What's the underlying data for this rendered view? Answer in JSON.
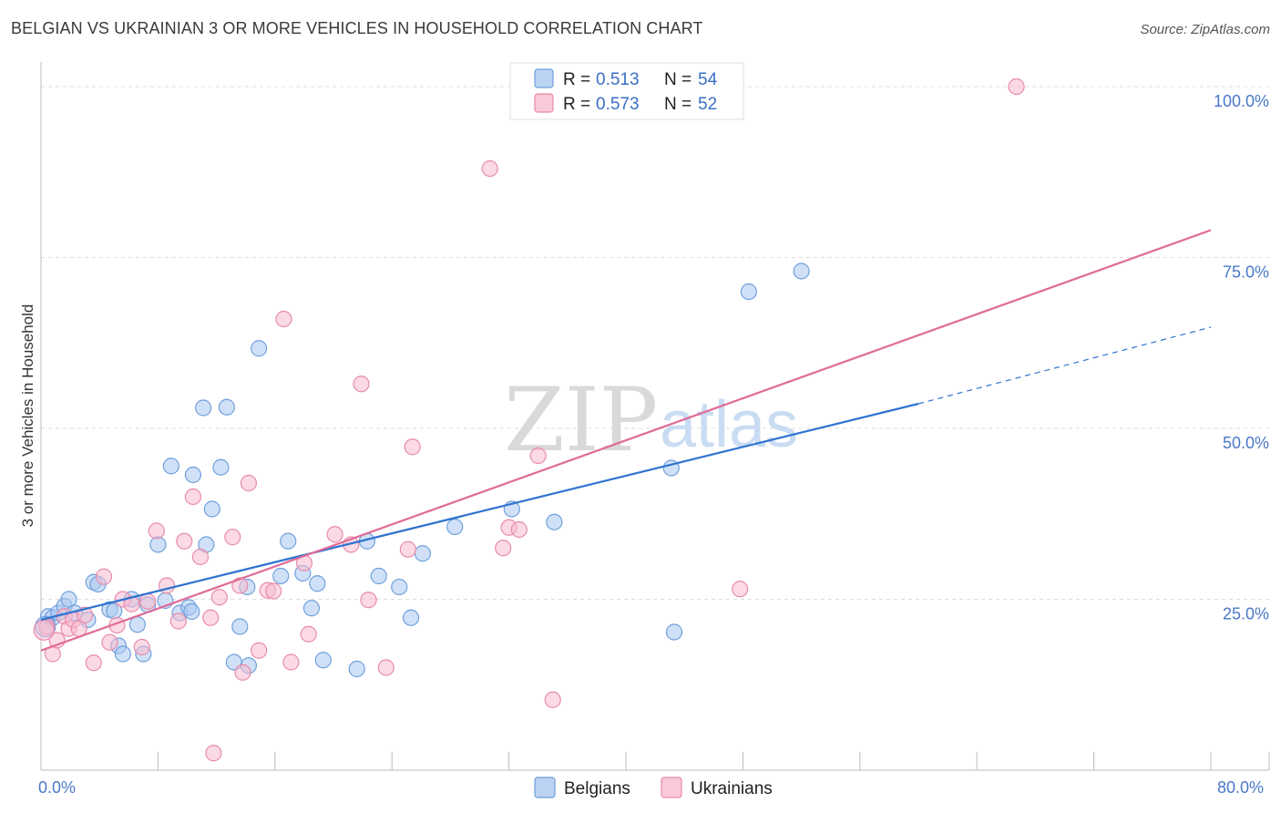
{
  "header": {
    "title": "BELGIAN VS UKRAINIAN 3 OR MORE VEHICLES IN HOUSEHOLD CORRELATION CHART",
    "source": "Source: ZipAtlas.com"
  },
  "watermark": {
    "zip": "ZIP",
    "atlas": "atlas"
  },
  "legend": {
    "rows": [
      {
        "r_label": "R =",
        "r_value": "0.513",
        "n_label": "N =",
        "n_value": "54"
      },
      {
        "r_label": "R =",
        "r_value": "0.573",
        "n_label": "N =",
        "n_value": "52"
      }
    ]
  },
  "colors": {
    "belgians_fill": "#aac8f0",
    "belgians_stroke": "#6f9fdc",
    "belgians_line": "#2f74d0",
    "ukrainians_fill": "#f7bcd0",
    "ukrainians_stroke": "#e88aab",
    "ukrainians_line": "#e06b98",
    "grid": "#dddddd",
    "tick_text": "#4a78c8"
  },
  "chart_data": {
    "type": "scatter",
    "title": "BELGIAN VS UKRAINIAN 3 OR MORE VEHICLES IN HOUSEHOLD CORRELATION CHART",
    "xlabel": "",
    "ylabel": "3 or more Vehicles in Household",
    "xlim": [
      0,
      80
    ],
    "ylim": [
      0,
      102
    ],
    "x_tick_labels": [
      "0.0%",
      "80.0%"
    ],
    "y_ticks": [
      25,
      50,
      75,
      100
    ],
    "y_tick_labels": [
      "25.0%",
      "50.0%",
      "75.0%",
      "100.0%"
    ],
    "grid": true,
    "legend_position": "top-center",
    "series": [
      {
        "name": "Belgians",
        "r": 0.513,
        "n": 54,
        "trend": {
          "x": [
            0,
            60,
            80
          ],
          "y": [
            22.0,
            53.6,
            64.8
          ],
          "dashed_from_x": 60
        },
        "points": [
          [
            0.5,
            22.5
          ],
          [
            0.8,
            22.3
          ],
          [
            1.2,
            23.0
          ],
          [
            1.6,
            24.0
          ],
          [
            1.9,
            25.0
          ],
          [
            2.3,
            23.0
          ],
          [
            3.2,
            22.0
          ],
          [
            3.6,
            27.5
          ],
          [
            3.9,
            27.2
          ],
          [
            4.7,
            23.5
          ],
          [
            5.0,
            23.3
          ],
          [
            5.3,
            18.2
          ],
          [
            5.6,
            17.0
          ],
          [
            6.2,
            25.0
          ],
          [
            6.6,
            21.3
          ],
          [
            7.0,
            17.0
          ],
          [
            7.3,
            24.2
          ],
          [
            8.0,
            33.0
          ],
          [
            8.5,
            24.8
          ],
          [
            8.9,
            44.5
          ],
          [
            9.5,
            23.0
          ],
          [
            10.1,
            23.8
          ],
          [
            10.3,
            23.2
          ],
          [
            10.4,
            43.2
          ],
          [
            11.1,
            53.0
          ],
          [
            11.3,
            33.0
          ],
          [
            11.7,
            38.2
          ],
          [
            12.3,
            44.3
          ],
          [
            12.7,
            53.1
          ],
          [
            13.6,
            21.0
          ],
          [
            13.2,
            15.8
          ],
          [
            14.2,
            15.3
          ],
          [
            14.1,
            26.8
          ],
          [
            14.9,
            61.7
          ],
          [
            16.4,
            28.4
          ],
          [
            16.9,
            33.5
          ],
          [
            17.9,
            28.8
          ],
          [
            18.5,
            23.7
          ],
          [
            18.9,
            27.3
          ],
          [
            19.3,
            16.1
          ],
          [
            21.6,
            14.8
          ],
          [
            22.3,
            33.5
          ],
          [
            23.1,
            28.4
          ],
          [
            24.5,
            26.8
          ],
          [
            25.3,
            22.3
          ],
          [
            26.1,
            31.7
          ],
          [
            28.3,
            35.6
          ],
          [
            32.2,
            38.2
          ],
          [
            35.1,
            36.3
          ],
          [
            43.3,
            20.2
          ],
          [
            43.1,
            44.2
          ],
          [
            48.4,
            70.0
          ],
          [
            52.0,
            73.0
          ],
          [
            0.3,
            21.0
          ]
        ]
      },
      {
        "name": "Ukrainians",
        "r": 0.573,
        "n": 52,
        "trend": {
          "x": [
            0,
            80
          ],
          "y": [
            17.5,
            79.0
          ]
        },
        "points": [
          [
            0.4,
            21.0
          ],
          [
            0.8,
            17.0
          ],
          [
            1.1,
            19.0
          ],
          [
            1.6,
            22.5
          ],
          [
            1.9,
            20.7
          ],
          [
            2.2,
            22.0
          ],
          [
            2.6,
            20.7
          ],
          [
            3.0,
            22.7
          ],
          [
            3.6,
            15.7
          ],
          [
            4.3,
            28.3
          ],
          [
            4.7,
            18.7
          ],
          [
            5.2,
            21.2
          ],
          [
            5.6,
            25.0
          ],
          [
            6.2,
            24.3
          ],
          [
            6.9,
            18.0
          ],
          [
            7.3,
            24.7
          ],
          [
            7.9,
            35.0
          ],
          [
            8.6,
            27.0
          ],
          [
            9.4,
            21.8
          ],
          [
            9.8,
            33.5
          ],
          [
            10.4,
            40.0
          ],
          [
            10.9,
            31.2
          ],
          [
            11.6,
            22.3
          ],
          [
            11.8,
            2.5
          ],
          [
            12.2,
            25.3
          ],
          [
            13.1,
            34.1
          ],
          [
            13.6,
            27.0
          ],
          [
            13.8,
            14.3
          ],
          [
            14.2,
            42.0
          ],
          [
            14.9,
            17.5
          ],
          [
            15.5,
            26.3
          ],
          [
            15.9,
            26.2
          ],
          [
            16.6,
            66.0
          ],
          [
            17.1,
            15.8
          ],
          [
            18.0,
            30.3
          ],
          [
            18.3,
            19.9
          ],
          [
            20.1,
            34.5
          ],
          [
            21.2,
            33.0
          ],
          [
            21.9,
            56.5
          ],
          [
            22.4,
            24.9
          ],
          [
            23.6,
            15.0
          ],
          [
            25.1,
            32.3
          ],
          [
            25.4,
            47.3
          ],
          [
            30.7,
            88.0
          ],
          [
            31.6,
            32.5
          ],
          [
            32.0,
            35.5
          ],
          [
            32.7,
            35.2
          ],
          [
            34.0,
            46.0
          ],
          [
            35.0,
            10.3
          ],
          [
            47.8,
            26.5
          ],
          [
            66.7,
            100.0
          ],
          [
            0.2,
            20.5
          ]
        ]
      }
    ]
  },
  "bottom_legend": {
    "belgians": "Belgians",
    "ukrainians": "Ukrainians"
  }
}
